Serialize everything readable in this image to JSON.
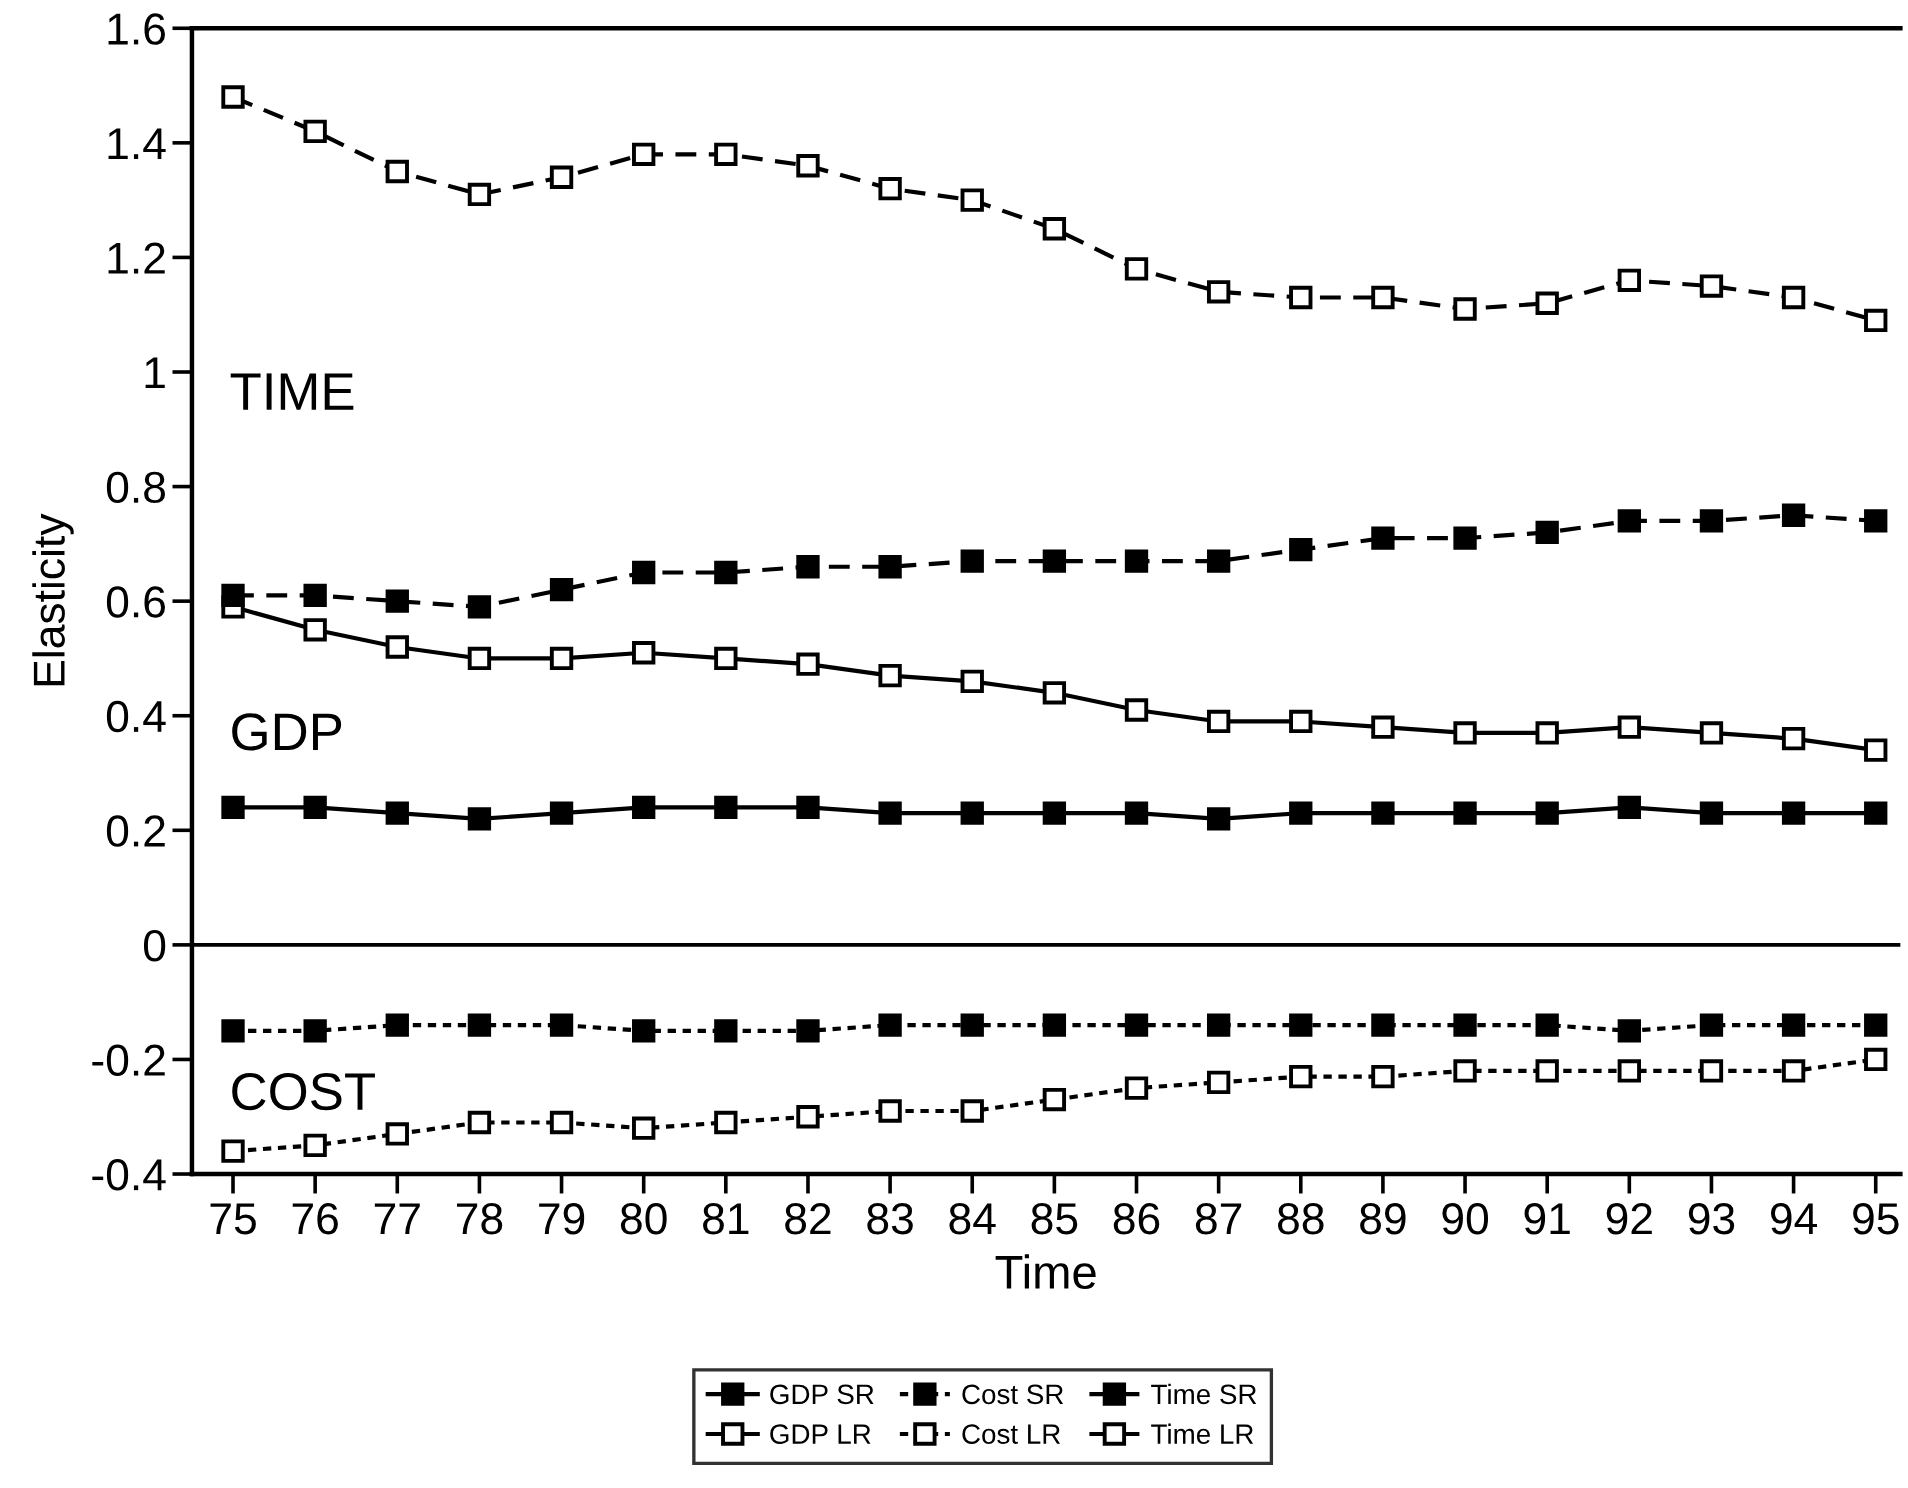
{
  "chart_data": {
    "type": "line",
    "xlabel": "Time",
    "ylabel": "Elasticity",
    "x": [
      75,
      76,
      77,
      78,
      79,
      80,
      81,
      82,
      83,
      84,
      85,
      86,
      87,
      88,
      89,
      90,
      91,
      92,
      93,
      94,
      95
    ],
    "xlim": [
      74.5,
      95.3
    ],
    "xticks": [
      75,
      76,
      77,
      78,
      79,
      80,
      81,
      82,
      83,
      84,
      85,
      86,
      87,
      88,
      89,
      90,
      91,
      92,
      93,
      94,
      95
    ],
    "ylim": [
      -0.4,
      1.6
    ],
    "yticks": [
      -0.4,
      -0.2,
      0,
      0.2,
      0.4,
      0.6,
      0.8,
      1,
      1.2,
      1.4,
      1.6
    ],
    "grid": false,
    "legend": "bottom",
    "marker": "square",
    "ref_lines": [
      {
        "axis": "y",
        "value": 0,
        "color": "#000000"
      }
    ],
    "annotations": [
      "TIME",
      "GDP",
      "COST"
    ],
    "series": [
      {
        "name": "GDP SR",
        "color": "#000000",
        "line_style": "solid",
        "values": [
          0.24,
          0.24,
          0.23,
          0.22,
          0.23,
          0.24,
          0.24,
          0.24,
          0.23,
          0.23,
          0.23,
          0.23,
          0.22,
          0.23,
          0.23,
          0.23,
          0.23,
          0.24,
          0.23,
          0.23,
          0.23
        ]
      },
      {
        "name": "GDP LR",
        "color": "#000000",
        "line_style": "solid",
        "values": [
          0.59,
          0.55,
          0.52,
          0.5,
          0.5,
          0.51,
          0.5,
          0.49,
          0.47,
          0.46,
          0.44,
          0.41,
          0.39,
          0.39,
          0.38,
          0.37,
          0.37,
          0.38,
          0.37,
          0.36,
          0.34
        ]
      },
      {
        "name": "Cost SR",
        "color": "#000000",
        "line_style": "dotted",
        "values": [
          -0.15,
          -0.15,
          -0.14,
          -0.14,
          -0.14,
          -0.15,
          -0.15,
          -0.15,
          -0.14,
          -0.14,
          -0.14,
          -0.14,
          -0.14,
          -0.14,
          -0.14,
          -0.14,
          -0.14,
          -0.15,
          -0.14,
          -0.14,
          -0.14
        ]
      },
      {
        "name": "Cost LR",
        "color": "#000000",
        "line_style": "dotted",
        "values": [
          -0.36,
          -0.35,
          -0.33,
          -0.31,
          -0.31,
          -0.32,
          -0.31,
          -0.3,
          -0.29,
          -0.29,
          -0.27,
          -0.25,
          -0.24,
          -0.23,
          -0.23,
          -0.22,
          -0.22,
          -0.22,
          -0.22,
          -0.22,
          -0.2
        ]
      },
      {
        "name": "Time SR",
        "color": "#000000",
        "line_style": "dashed",
        "values": [
          0.61,
          0.61,
          0.6,
          0.59,
          0.62,
          0.65,
          0.65,
          0.66,
          0.66,
          0.67,
          0.67,
          0.67,
          0.67,
          0.69,
          0.71,
          0.71,
          0.72,
          0.74,
          0.74,
          0.75,
          0.74
        ]
      },
      {
        "name": "Time LR",
        "color": "#000000",
        "line_style": "dashed",
        "values": [
          1.48,
          1.42,
          1.35,
          1.31,
          1.34,
          1.38,
          1.38,
          1.36,
          1.32,
          1.3,
          1.25,
          1.18,
          1.14,
          1.13,
          1.13,
          1.11,
          1.12,
          1.16,
          1.15,
          1.13,
          1.09
        ]
      }
    ]
  }
}
